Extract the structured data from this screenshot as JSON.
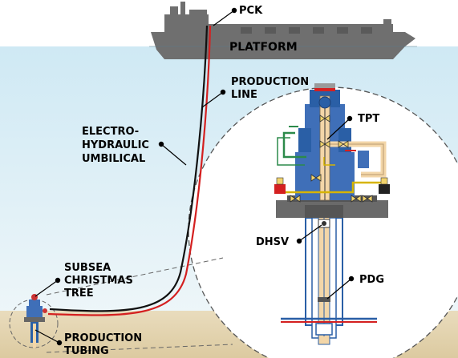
{
  "labels": {
    "pck": "PCK",
    "platform": "PLATFORM",
    "production_line_1": "PRODUCTION",
    "production_line_2": "LINE",
    "umbilical_1": "ELECTRO-",
    "umbilical_2": "HYDRAULIC",
    "umbilical_3": "UMBILICAL",
    "tpt": "TPT",
    "dhsv": "DHSV",
    "pdg": "PDG",
    "tree_1": "SUBSEA",
    "tree_2": "CHRISTMAS",
    "tree_3": "TREE",
    "tubing_1": "PRODUCTION",
    "tubing_2": "TUBING"
  },
  "colors": {
    "sea_top": "#cfe9f4",
    "sea_bottom": "#e9f4f8",
    "seabed": "#e7d9b9",
    "ship": "#6f6f6f",
    "production_line": "#d42020",
    "umbilical": "#111111",
    "casing": "#2a5fa6",
    "wellhead": "#3f6fb8",
    "base": "#6a6a6a",
    "tube_beige": "#f3d6a8"
  }
}
